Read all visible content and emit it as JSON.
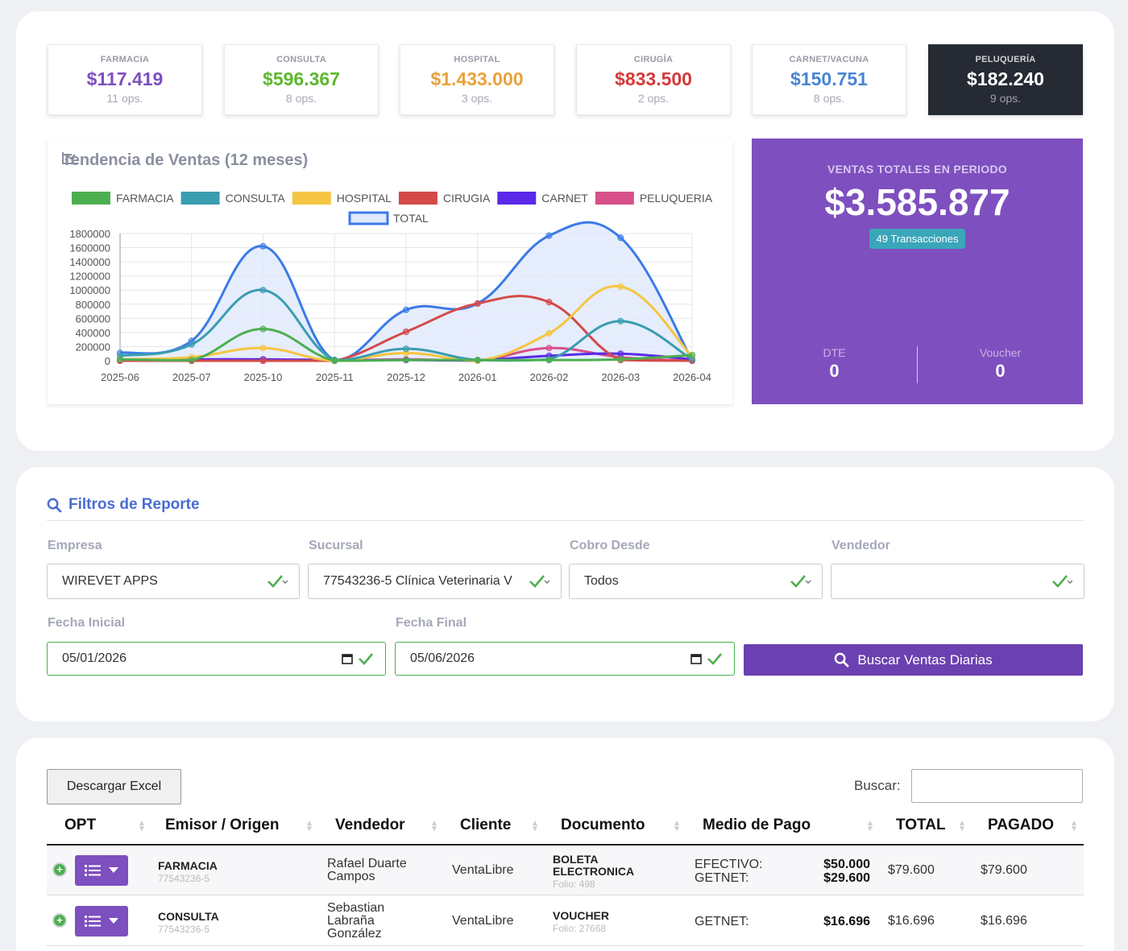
{
  "stats": [
    {
      "label": "FARMACIA",
      "value": "$117.419",
      "ops": "11 ops.",
      "color": "#7e4fbf"
    },
    {
      "label": "CONSULTA",
      "value": "$596.367",
      "ops": "8 ops.",
      "color": "#5cb82c"
    },
    {
      "label": "HOSPITAL",
      "value": "$1.433.000",
      "ops": "3 ops.",
      "color": "#e8a23a"
    },
    {
      "label": "CIRUGÍA",
      "value": "$833.500",
      "ops": "2 ops.",
      "color": "#d43a3a"
    },
    {
      "label": "CARNET/VACUNA",
      "value": "$150.751",
      "ops": "8 ops.",
      "color": "#4a84d4"
    },
    {
      "label": "PELUQUERÍA",
      "value": "$182.240",
      "ops": "9 ops.",
      "color": "#ffffff"
    }
  ],
  "chart_title": "Tendencia de Ventas (12 meses)",
  "chart_data": {
    "type": "line",
    "x": [
      "2025-06",
      "2025-07",
      "2025-10",
      "2025-11",
      "2025-12",
      "2026-01",
      "2026-02",
      "2026-03",
      "2026-04"
    ],
    "ylim": [
      0,
      1800000
    ],
    "yticks": [
      0,
      200000,
      400000,
      600000,
      800000,
      1000000,
      1200000,
      1400000,
      1600000,
      1800000
    ],
    "grid": true,
    "legend": "top",
    "series": [
      {
        "name": "FARMACIA",
        "color": "#4caf50",
        "values": [
          20000,
          10000,
          450000,
          0,
          10000,
          10000,
          10000,
          20000,
          80000
        ]
      },
      {
        "name": "CONSULTA",
        "color": "#3a9db0",
        "values": [
          70000,
          230000,
          1000000,
          10000,
          170000,
          10000,
          20000,
          560000,
          20000
        ]
      },
      {
        "name": "HOSPITAL",
        "color": "#f5c542",
        "values": [
          20000,
          50000,
          180000,
          0,
          110000,
          0,
          390000,
          1050000,
          60000
        ]
      },
      {
        "name": "CIRUGIA",
        "color": "#d44a4a",
        "values": [
          0,
          0,
          0,
          0,
          410000,
          810000,
          830000,
          10000,
          0
        ]
      },
      {
        "name": "CARNET",
        "color": "#5a2ae8",
        "values": [
          10000,
          20000,
          20000,
          10000,
          10000,
          10000,
          70000,
          100000,
          20000
        ]
      },
      {
        "name": "PELUQUERIA",
        "color": "#d8508a",
        "values": [
          0,
          0,
          0,
          0,
          20000,
          0,
          180000,
          50000,
          0
        ]
      },
      {
        "name": "TOTAL",
        "color": "#3b7ae8",
        "fill": "#e0e8fb",
        "values": [
          110000,
          280000,
          1620000,
          10000,
          720000,
          810000,
          1770000,
          1740000,
          10000
        ]
      }
    ]
  },
  "total": {
    "label": "VENTAS TOTALES EN PERIODO",
    "value": "$3.585.877",
    "badge": "49 Transacciones",
    "dte_label": "DTE",
    "dte_value": "0",
    "voucher_label": "Voucher",
    "voucher_value": "0"
  },
  "filters": {
    "title": "Filtros de Reporte",
    "empresa_label": "Empresa",
    "empresa_value": "WIREVET APPS",
    "sucursal_label": "Sucursal",
    "sucursal_value": "77543236-5 Clínica Veterinaria V",
    "cobro_label": "Cobro Desde",
    "cobro_value": "Todos",
    "vendedor_label": "Vendedor",
    "vendedor_value": "",
    "fecha_inicial_label": "Fecha Inicial",
    "fecha_inicial_value": "05/01/2026",
    "fecha_final_label": "Fecha Final",
    "fecha_final_value": "05/06/2026",
    "search_button": "Buscar Ventas Diarias"
  },
  "table": {
    "excel_button": "Descargar Excel",
    "search_label": "Buscar:",
    "headers": [
      "OPT",
      "Emisor / Origen",
      "Vendedor",
      "Cliente",
      "Documento",
      "Medio de Pago",
      "TOTAL",
      "PAGADO"
    ],
    "rows": [
      {
        "emisor": "FARMACIA",
        "emisor_id": "77543236-5",
        "vendedor": "Rafael Duarte Campos",
        "cliente": "VentaLibre",
        "documento": "BOLETA ELECTRONICA",
        "folio": "Folio: 498",
        "pagos": [
          {
            "medio": "EFECTIVO:",
            "monto": "$50.000"
          },
          {
            "medio": "GETNET:",
            "monto": "$29.600"
          }
        ],
        "total": "$79.600",
        "pagado": "$79.600"
      },
      {
        "emisor": "CONSULTA",
        "emisor_id": "77543236-5",
        "vendedor": "Sebastian Labraña González",
        "cliente": "VentaLibre",
        "documento": "VOUCHER",
        "folio": "Folio: 27668",
        "pagos": [
          {
            "medio": "GETNET:",
            "monto": "$16.696"
          }
        ],
        "total": "$16.696",
        "pagado": "$16.696"
      }
    ]
  }
}
